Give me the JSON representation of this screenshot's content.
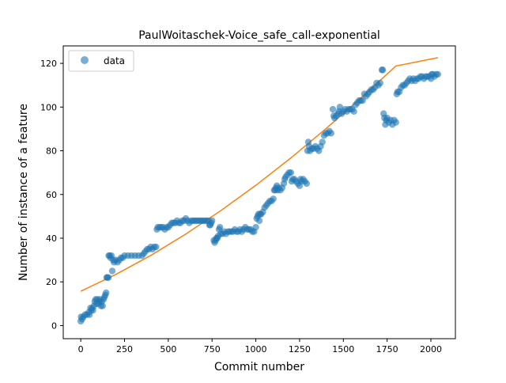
{
  "chart_data": {
    "type": "scatter",
    "title": "PaulWoitaschek-Voice_safe_call-exponential",
    "xlabel": "Commit number",
    "ylabel": "Number of instance of a feature",
    "xlim": [
      -100,
      2140
    ],
    "ylim": [
      -6,
      128
    ],
    "x_ticks": [
      0,
      250,
      500,
      750,
      1000,
      1250,
      1500,
      1750,
      2000
    ],
    "y_ticks": [
      0,
      20,
      40,
      60,
      80,
      100,
      120
    ],
    "grid": false,
    "legend": {
      "position": "top-left",
      "entries": [
        {
          "label": "data",
          "marker": "circle",
          "color": "#1f77b4"
        }
      ]
    },
    "series": [
      {
        "name": "data",
        "kind": "scatter",
        "color": "#1f77b4",
        "points": [
          [
            0,
            2
          ],
          [
            2,
            4
          ],
          [
            8,
            3
          ],
          [
            15,
            4
          ],
          [
            25,
            5
          ],
          [
            35,
            5
          ],
          [
            45,
            6
          ],
          [
            50,
            5
          ],
          [
            55,
            8
          ],
          [
            60,
            7
          ],
          [
            65,
            8
          ],
          [
            70,
            7
          ],
          [
            75,
            9
          ],
          [
            80,
            11
          ],
          [
            85,
            12
          ],
          [
            90,
            10
          ],
          [
            95,
            12
          ],
          [
            100,
            10
          ],
          [
            105,
            11
          ],
          [
            110,
            12
          ],
          [
            115,
            9
          ],
          [
            120,
            11
          ],
          [
            125,
            9
          ],
          [
            130,
            12
          ],
          [
            135,
            13
          ],
          [
            140,
            14
          ],
          [
            145,
            15
          ],
          [
            148,
            22
          ],
          [
            152,
            22
          ],
          [
            158,
            22
          ],
          [
            160,
            32
          ],
          [
            165,
            32
          ],
          [
            170,
            31
          ],
          [
            175,
            32
          ],
          [
            180,
            25
          ],
          [
            185,
            30
          ],
          [
            190,
            29
          ],
          [
            200,
            30
          ],
          [
            210,
            29
          ],
          [
            220,
            30
          ],
          [
            230,
            31
          ],
          [
            240,
            31
          ],
          [
            250,
            32
          ],
          [
            270,
            32
          ],
          [
            290,
            32
          ],
          [
            310,
            32
          ],
          [
            330,
            32
          ],
          [
            350,
            32
          ],
          [
            360,
            33
          ],
          [
            370,
            34
          ],
          [
            380,
            35
          ],
          [
            390,
            35
          ],
          [
            400,
            36
          ],
          [
            410,
            35
          ],
          [
            420,
            36
          ],
          [
            430,
            36
          ],
          [
            435,
            44
          ],
          [
            440,
            45
          ],
          [
            450,
            45
          ],
          [
            460,
            45
          ],
          [
            470,
            45
          ],
          [
            480,
            44
          ],
          [
            490,
            45
          ],
          [
            500,
            45
          ],
          [
            510,
            46
          ],
          [
            520,
            47
          ],
          [
            530,
            47
          ],
          [
            540,
            47
          ],
          [
            550,
            48
          ],
          [
            560,
            47
          ],
          [
            570,
            47
          ],
          [
            580,
            48
          ],
          [
            590,
            48
          ],
          [
            600,
            49
          ],
          [
            610,
            48
          ],
          [
            620,
            47
          ],
          [
            630,
            48
          ],
          [
            640,
            48
          ],
          [
            650,
            48
          ],
          [
            660,
            48
          ],
          [
            670,
            48
          ],
          [
            680,
            48
          ],
          [
            690,
            48
          ],
          [
            700,
            48
          ],
          [
            710,
            48
          ],
          [
            720,
            48
          ],
          [
            730,
            48
          ],
          [
            735,
            46
          ],
          [
            740,
            46
          ],
          [
            745,
            47
          ],
          [
            750,
            48
          ],
          [
            760,
            39
          ],
          [
            765,
            38
          ],
          [
            770,
            39
          ],
          [
            775,
            40
          ],
          [
            780,
            40
          ],
          [
            785,
            41
          ],
          [
            790,
            44
          ],
          [
            795,
            45
          ],
          [
            800,
            42
          ],
          [
            810,
            42
          ],
          [
            820,
            43
          ],
          [
            830,
            42
          ],
          [
            840,
            43
          ],
          [
            850,
            43
          ],
          [
            860,
            43
          ],
          [
            870,
            43
          ],
          [
            880,
            44
          ],
          [
            890,
            43
          ],
          [
            900,
            43
          ],
          [
            910,
            44
          ],
          [
            920,
            43
          ],
          [
            930,
            44
          ],
          [
            940,
            45
          ],
          [
            950,
            44
          ],
          [
            960,
            44
          ],
          [
            970,
            44
          ],
          [
            980,
            43
          ],
          [
            990,
            43
          ],
          [
            1000,
            45
          ],
          [
            1005,
            49
          ],
          [
            1010,
            50
          ],
          [
            1015,
            51
          ],
          [
            1020,
            48
          ],
          [
            1025,
            51
          ],
          [
            1030,
            51
          ],
          [
            1040,
            52
          ],
          [
            1050,
            54
          ],
          [
            1060,
            55
          ],
          [
            1070,
            56
          ],
          [
            1080,
            57
          ],
          [
            1090,
            57
          ],
          [
            1100,
            58
          ],
          [
            1105,
            62
          ],
          [
            1110,
            62
          ],
          [
            1115,
            63
          ],
          [
            1120,
            64
          ],
          [
            1125,
            62
          ],
          [
            1130,
            63
          ],
          [
            1140,
            62
          ],
          [
            1150,
            63
          ],
          [
            1160,
            65
          ],
          [
            1165,
            67
          ],
          [
            1170,
            68
          ],
          [
            1180,
            69
          ],
          [
            1190,
            70
          ],
          [
            1200,
            70
          ],
          [
            1205,
            66
          ],
          [
            1210,
            67
          ],
          [
            1220,
            67
          ],
          [
            1230,
            66
          ],
          [
            1240,
            65
          ],
          [
            1250,
            64
          ],
          [
            1255,
            67
          ],
          [
            1260,
            66
          ],
          [
            1270,
            67
          ],
          [
            1280,
            66
          ],
          [
            1290,
            65
          ],
          [
            1295,
            80
          ],
          [
            1300,
            84
          ],
          [
            1305,
            82
          ],
          [
            1310,
            80
          ],
          [
            1320,
            81
          ],
          [
            1330,
            81
          ],
          [
            1340,
            82
          ],
          [
            1350,
            81
          ],
          [
            1360,
            80
          ],
          [
            1370,
            82
          ],
          [
            1380,
            84
          ],
          [
            1390,
            87
          ],
          [
            1400,
            88
          ],
          [
            1410,
            88
          ],
          [
            1420,
            89
          ],
          [
            1430,
            88
          ],
          [
            1440,
            99
          ],
          [
            1445,
            96
          ],
          [
            1450,
            95
          ],
          [
            1460,
            96
          ],
          [
            1470,
            97
          ],
          [
            1475,
            98
          ],
          [
            1480,
            100
          ],
          [
            1490,
            97
          ],
          [
            1500,
            98
          ],
          [
            1510,
            99
          ],
          [
            1520,
            98
          ],
          [
            1530,
            99
          ],
          [
            1540,
            99
          ],
          [
            1550,
            99
          ],
          [
            1560,
            98
          ],
          [
            1570,
            101
          ],
          [
            1580,
            102
          ],
          [
            1590,
            103
          ],
          [
            1600,
            103
          ],
          [
            1610,
            103
          ],
          [
            1620,
            106
          ],
          [
            1630,
            105
          ],
          [
            1640,
            106
          ],
          [
            1650,
            107
          ],
          [
            1660,
            108
          ],
          [
            1670,
            108
          ],
          [
            1680,
            109
          ],
          [
            1690,
            111
          ],
          [
            1700,
            110
          ],
          [
            1710,
            111
          ],
          [
            1720,
            117
          ],
          [
            1725,
            117
          ],
          [
            1730,
            97
          ],
          [
            1735,
            95
          ],
          [
            1740,
            92
          ],
          [
            1745,
            94
          ],
          [
            1750,
            95
          ],
          [
            1760,
            93
          ],
          [
            1770,
            94
          ],
          [
            1780,
            92
          ],
          [
            1790,
            94
          ],
          [
            1800,
            93
          ],
          [
            1805,
            106
          ],
          [
            1810,
            107
          ],
          [
            1820,
            107
          ],
          [
            1830,
            109
          ],
          [
            1840,
            110
          ],
          [
            1850,
            110
          ],
          [
            1860,
            111
          ],
          [
            1870,
            112
          ],
          [
            1880,
            113
          ],
          [
            1890,
            112
          ],
          [
            1900,
            113
          ],
          [
            1910,
            112
          ],
          [
            1920,
            113
          ],
          [
            1930,
            113
          ],
          [
            1940,
            114
          ],
          [
            1950,
            114
          ],
          [
            1960,
            113
          ],
          [
            1970,
            114
          ],
          [
            1980,
            114
          ],
          [
            1990,
            114
          ],
          [
            2000,
            113
          ],
          [
            2005,
            115
          ],
          [
            2010,
            115
          ],
          [
            2020,
            114
          ],
          [
            2030,
            115
          ],
          [
            2040,
            115
          ]
        ]
      },
      {
        "name": "",
        "kind": "line",
        "color": "#ff7f0e",
        "points": [
          [
            0,
            15.7
          ],
          [
            200,
            23.4
          ],
          [
            400,
            32.1
          ],
          [
            600,
            41.9
          ],
          [
            800,
            52.6
          ],
          [
            1000,
            64.2
          ],
          [
            1200,
            76.7
          ],
          [
            1400,
            90.1
          ],
          [
            1600,
            104.1
          ],
          [
            1800,
            118.8
          ],
          [
            2040,
            122.6
          ]
        ]
      }
    ]
  }
}
